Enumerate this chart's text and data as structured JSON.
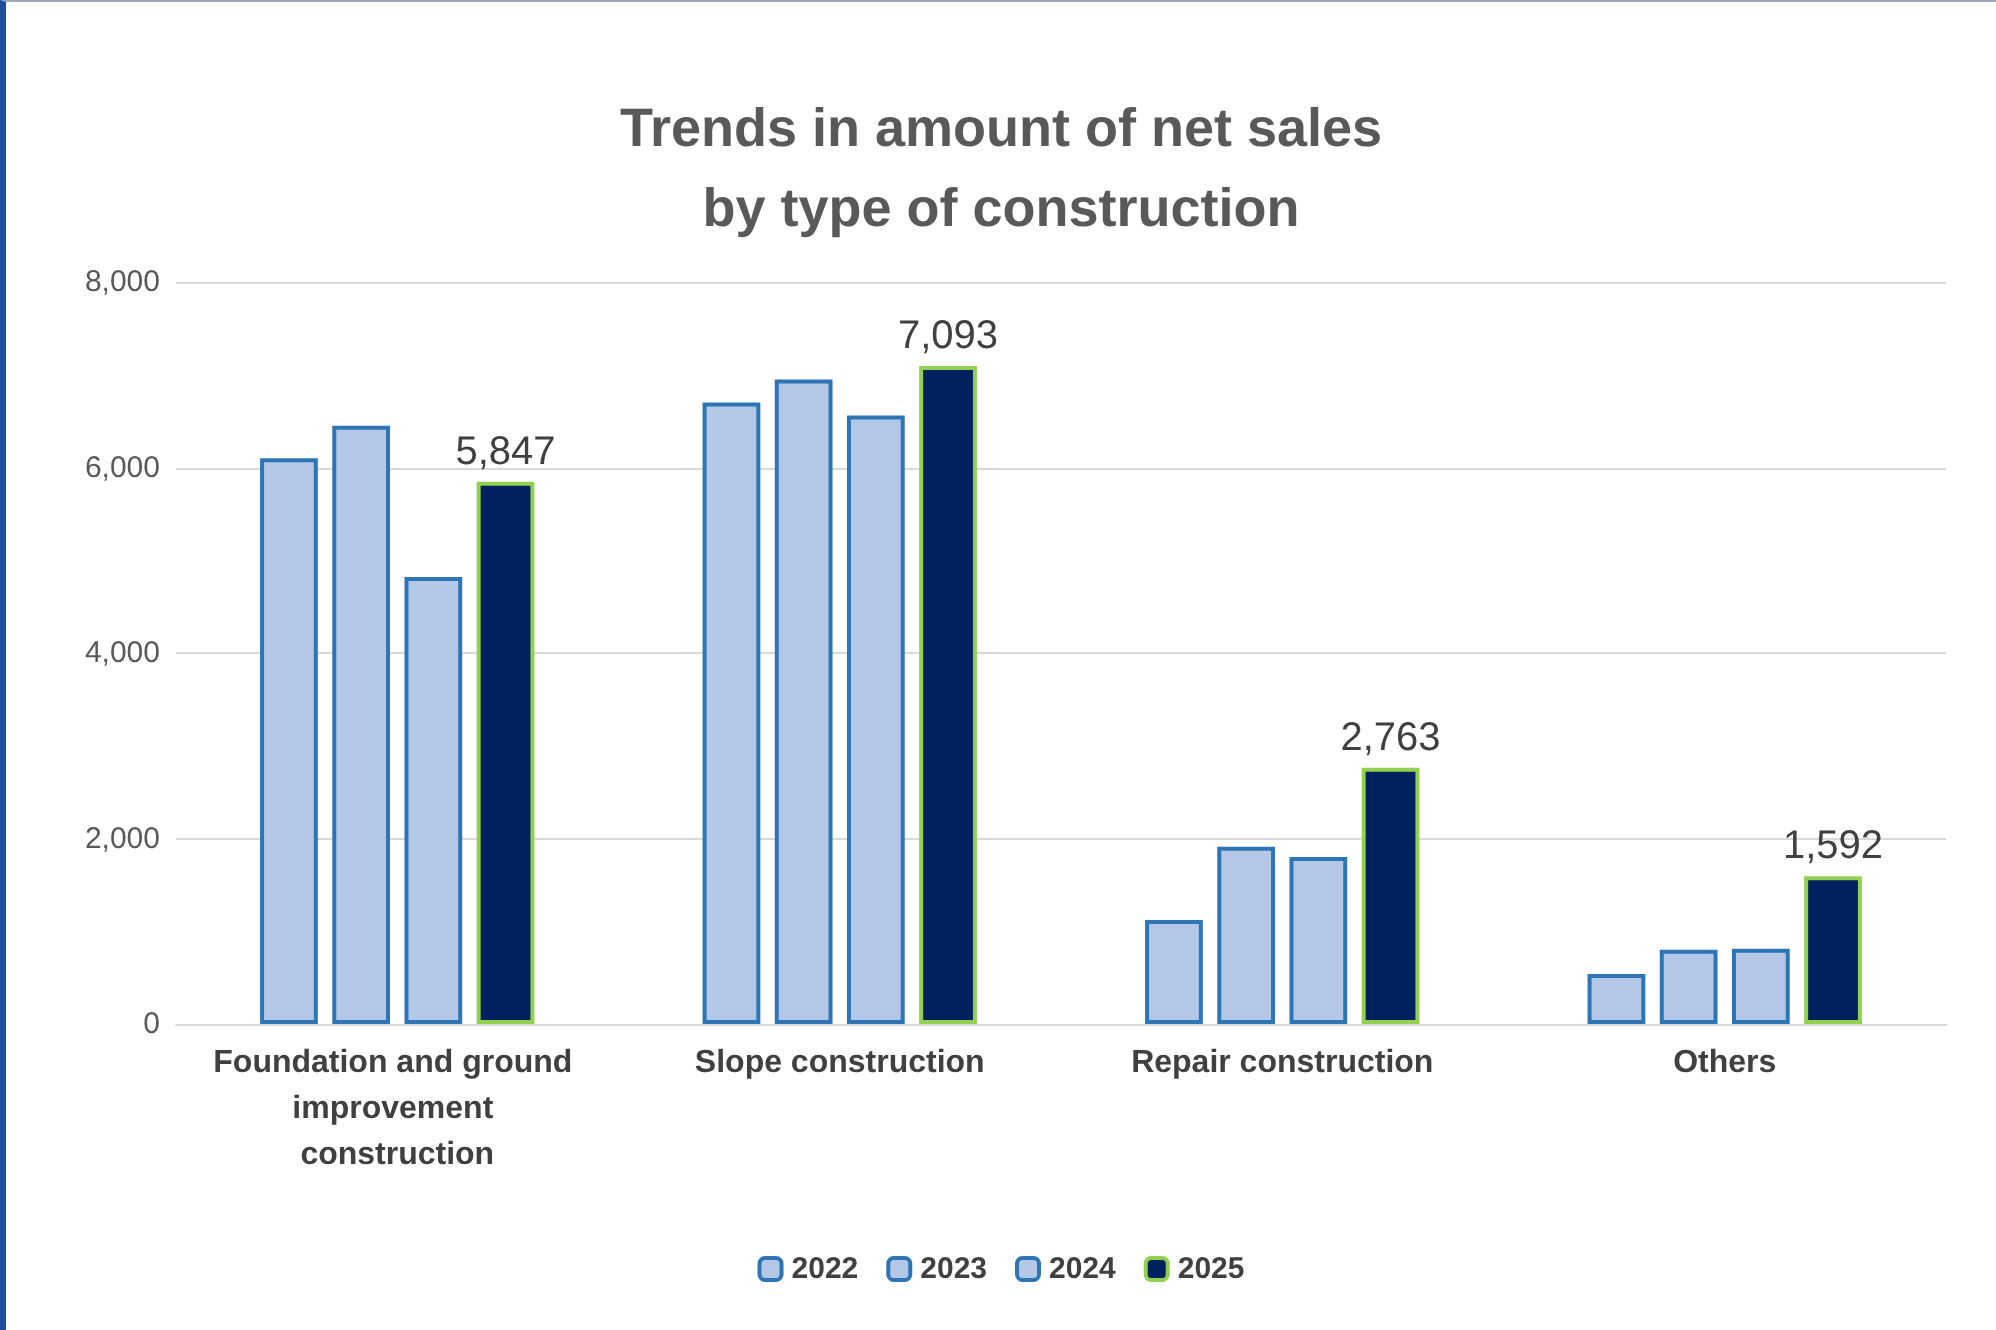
{
  "chart_data": {
    "type": "bar",
    "title": "Trends in amount of net sales\nby type of construction",
    "categories": [
      "Foundation and ground improvement construction",
      "Slope construction",
      "Repair construction",
      "Others"
    ],
    "series": [
      {
        "name": "2022",
        "color": "#b4c7e7",
        "values": [
          6100,
          6700,
          1120,
          540
        ]
      },
      {
        "name": "2023",
        "color": "#b4c7e7",
        "values": [
          6450,
          6950,
          1910,
          800
        ]
      },
      {
        "name": "2024",
        "color": "#b4c7e7",
        "values": [
          4820,
          6560,
          1800,
          810
        ]
      },
      {
        "name": "2025",
        "color": "#002060",
        "values": [
          5847,
          7093,
          2763,
          1592
        ],
        "value_labels": [
          "5,847",
          "7,093",
          "2,763",
          "1,592"
        ]
      }
    ],
    "ylim": [
      0,
      8000
    ],
    "yticks": [
      {
        "value": 0,
        "label": "0"
      },
      {
        "value": 2000,
        "label": "2,000"
      },
      {
        "value": 4000,
        "label": "4,000"
      },
      {
        "value": 6000,
        "label": "6,000"
      },
      {
        "value": 8000,
        "label": "8,000"
      }
    ],
    "grid": "y",
    "legend": "bottom"
  }
}
